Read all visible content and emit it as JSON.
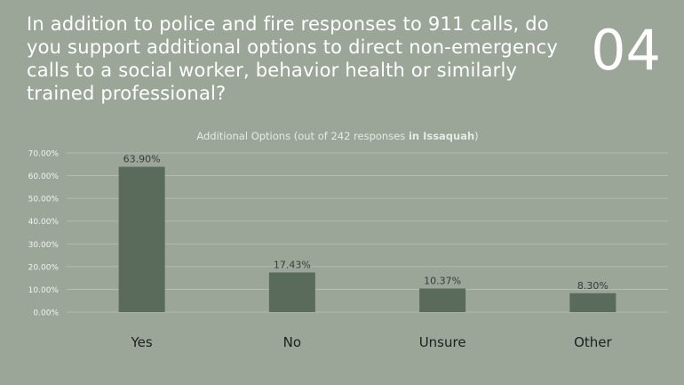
{
  "slide": {
    "question": "In addition to police and fire responses to 911 calls, do you support additional options to direct non-emergency calls to a social worker, behavior health or similarly trained professional?",
    "number": "04"
  },
  "chart_data": {
    "type": "bar",
    "title_prefix": "Additional Options (out of 242 responses ",
    "title_bold": "in Issaquah",
    "title_suffix": ")",
    "categories": [
      "Yes",
      "No",
      "Unsure",
      "Other"
    ],
    "values": [
      63.9,
      17.43,
      10.37,
      8.3
    ],
    "value_labels": [
      "63.90%",
      "17.43%",
      "10.37%",
      "8.30%"
    ],
    "ylim": [
      0,
      70
    ],
    "yticks": [
      "0.00%",
      "10.00%",
      "20.00%",
      "30.00%",
      "40.00%",
      "50.00%",
      "60.00%",
      "70.00%"
    ],
    "grid": true,
    "colors": {
      "bar": "#5A6A5B",
      "grid": "#B8C0B6",
      "text": "#3A3A3A",
      "title": "#E6EAE4"
    }
  }
}
